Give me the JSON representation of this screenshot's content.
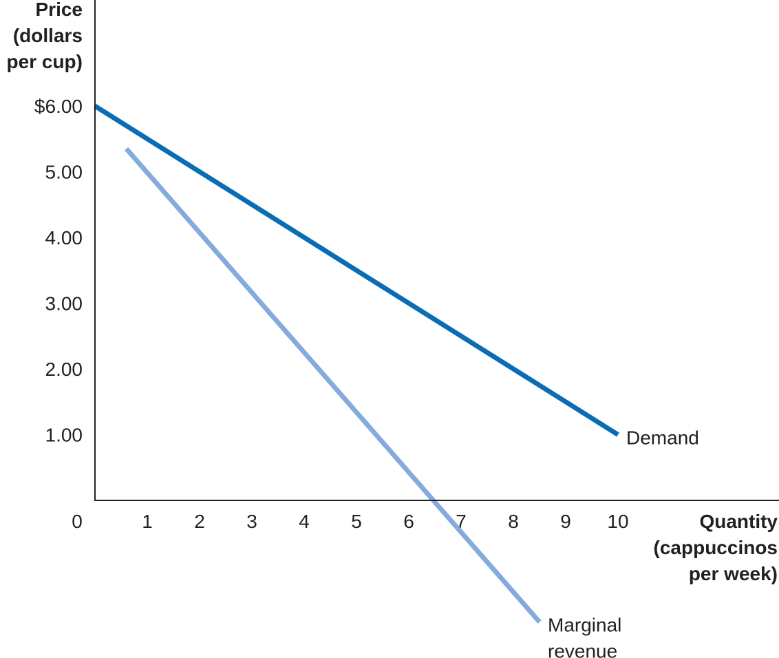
{
  "chart_data": {
    "type": "line",
    "title": "",
    "ylabel_lines": [
      "Price",
      "(dollars",
      "per cup)"
    ],
    "xlabel_lines": [
      "Quantity",
      "(cappuccinos",
      "per week)"
    ],
    "xlim": [
      0,
      13
    ],
    "ylim": [
      -2,
      6
    ],
    "x_ticks": [
      {
        "value": 0,
        "label": "0"
      },
      {
        "value": 1,
        "label": "1"
      },
      {
        "value": 2,
        "label": "2"
      },
      {
        "value": 3,
        "label": "3"
      },
      {
        "value": 4,
        "label": "4"
      },
      {
        "value": 5,
        "label": "5"
      },
      {
        "value": 6,
        "label": "6"
      },
      {
        "value": 7,
        "label": "7"
      },
      {
        "value": 8,
        "label": "8"
      },
      {
        "value": 9,
        "label": "9"
      },
      {
        "value": 10,
        "label": "10"
      }
    ],
    "y_ticks": [
      {
        "value": 6,
        "label": "$6.00"
      },
      {
        "value": 5,
        "label": "5.00"
      },
      {
        "value": 4,
        "label": "4.00"
      },
      {
        "value": 3,
        "label": "3.00"
      },
      {
        "value": 2,
        "label": "2.00"
      },
      {
        "value": 1,
        "label": "1.00"
      }
    ],
    "series": [
      {
        "name": "Demand",
        "label_lines": [
          "Demand"
        ],
        "color": "#0a6cb4",
        "x": [
          0,
          10
        ],
        "y": [
          6.0,
          1.0
        ]
      },
      {
        "name": "Marginal revenue",
        "label_lines": [
          "Marginal",
          "revenue"
        ],
        "color": "#85abdc",
        "x": [
          0.6,
          8.5
        ],
        "y": [
          5.35,
          -1.85
        ]
      }
    ],
    "grid": false,
    "legend": "none"
  }
}
